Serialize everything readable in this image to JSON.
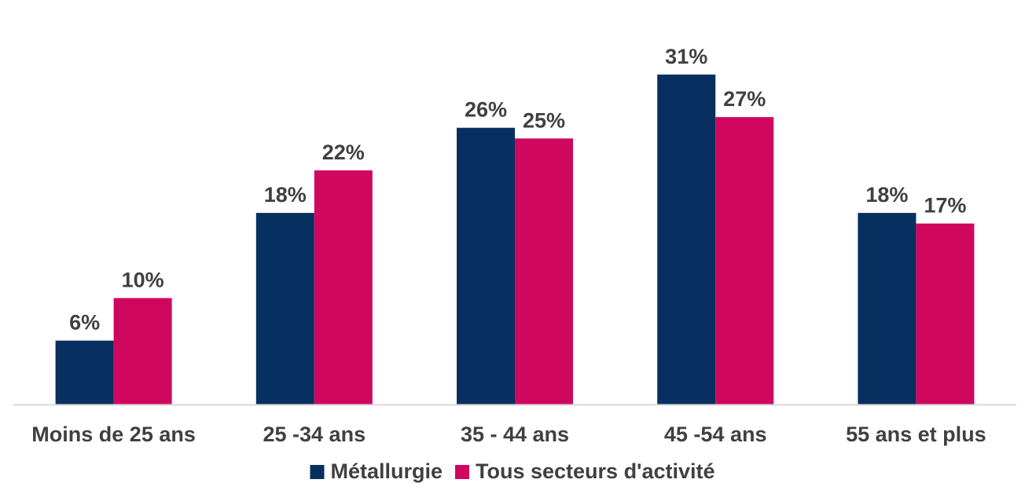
{
  "chart_data": {
    "type": "bar",
    "categories": [
      "Moins de 25 ans",
      "25 -34 ans",
      "35 - 44 ans",
      "45 -54 ans",
      "55 ans et plus"
    ],
    "series": [
      {
        "name": "Métallurgie",
        "values": [
          6,
          18,
          26,
          31,
          18
        ],
        "labels": [
          "6%",
          "18%",
          "26%",
          "31%",
          "18%"
        ],
        "color": "#072f5f"
      },
      {
        "name": "Tous secteurs d'activité",
        "values": [
          10,
          22,
          25,
          27,
          17
        ],
        "labels": [
          "10%",
          "22%",
          "25%",
          "27%",
          "17%"
        ],
        "color": "#d0075f"
      }
    ],
    "ylim": [
      0,
      35
    ],
    "grid": false,
    "legend_position": "bottom",
    "axis_color": "#d9d9d9",
    "label_color": "#404040"
  }
}
